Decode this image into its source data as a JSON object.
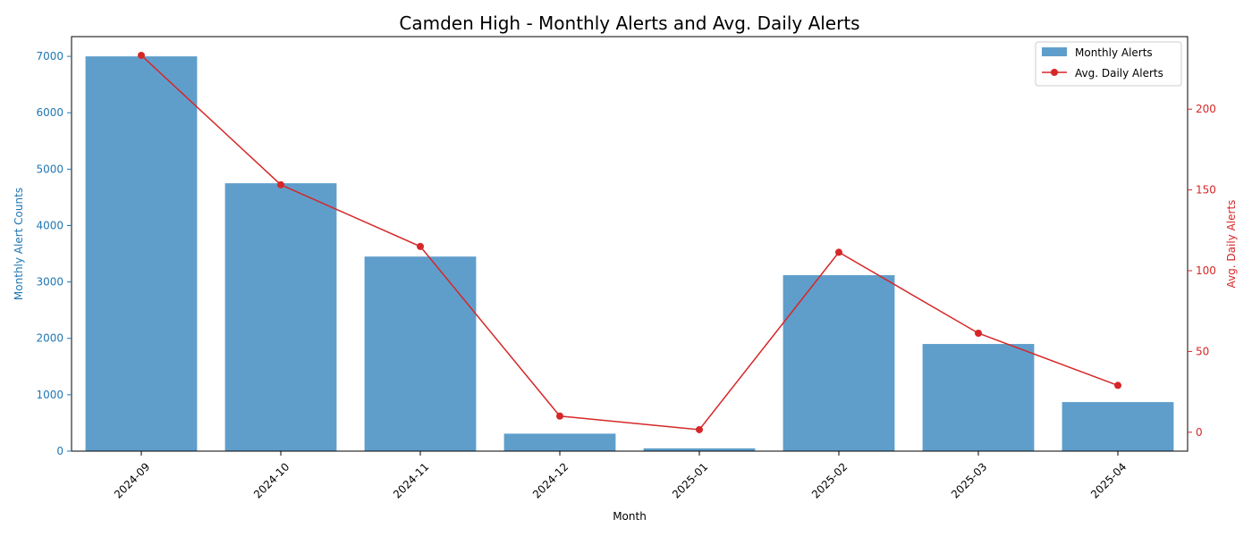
{
  "chart_data": {
    "type": "bar",
    "title": "Camden High - Monthly Alerts and Avg. Daily Alerts",
    "xlabel": "Month",
    "categories": [
      "2024-09",
      "2024-10",
      "2024-11",
      "2024-12",
      "2025-01",
      "2025-02",
      "2025-03",
      "2025-04"
    ],
    "left_axis": {
      "label": "Monthly Alert Counts",
      "ylim": [
        0,
        7350
      ],
      "ticks": [
        0,
        1000,
        2000,
        3000,
        4000,
        5000,
        6000,
        7000
      ],
      "color": "#1f77b4"
    },
    "right_axis": {
      "label": "Avg. Daily Alerts",
      "ylim": [
        -11.7,
        244.9
      ],
      "ticks": [
        0,
        50,
        100,
        150,
        200
      ],
      "color": "#d62728"
    },
    "series": [
      {
        "name": "Monthly Alerts",
        "type": "bar",
        "axis": "left",
        "color": "#5f9ecb",
        "values": [
          7000,
          4750,
          3450,
          310,
          50,
          3120,
          1900,
          870
        ]
      },
      {
        "name": "Avg. Daily Alerts",
        "type": "line",
        "axis": "right",
        "color": "#d62728",
        "values": [
          233.3,
          153.2,
          115.0,
          10.0,
          1.6,
          111.4,
          61.3,
          29.0
        ]
      }
    ],
    "legend": "top-right",
    "grid": false
  }
}
